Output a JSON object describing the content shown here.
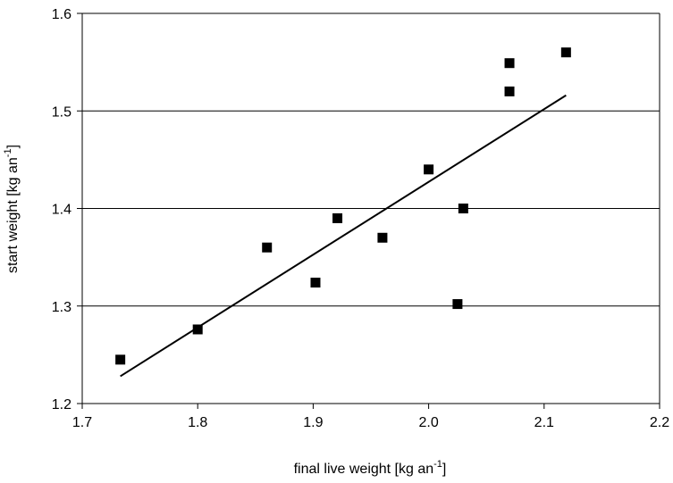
{
  "chart_data": {
    "type": "scatter",
    "xlabel": {
      "main": "final live weight [kg an",
      "sup": "-1",
      "tail": "]"
    },
    "ylabel": {
      "main": "start weight [kg an",
      "sup": "-1",
      "tail": "]"
    },
    "xlim": [
      1.7,
      2.2
    ],
    "ylim": [
      1.2,
      1.6
    ],
    "x_ticks": [
      "1.7",
      "1.8",
      "1.9",
      "2.0",
      "2.1",
      "2.2"
    ],
    "y_ticks": [
      "1.2",
      "1.3",
      "1.4",
      "1.5",
      "1.6"
    ],
    "grid": "horizontal",
    "series": [
      {
        "marker": "square",
        "color": "#000000",
        "points": [
          {
            "x": 1.733,
            "y": 1.245
          },
          {
            "x": 1.8,
            "y": 1.276
          },
          {
            "x": 1.86,
            "y": 1.36
          },
          {
            "x": 1.902,
            "y": 1.324
          },
          {
            "x": 1.921,
            "y": 1.39
          },
          {
            "x": 1.96,
            "y": 1.37
          },
          {
            "x": 2.0,
            "y": 1.44
          },
          {
            "x": 2.025,
            "y": 1.302
          },
          {
            "x": 2.03,
            "y": 1.4
          },
          {
            "x": 2.07,
            "y": 1.549
          },
          {
            "x": 2.07,
            "y": 1.52
          },
          {
            "x": 2.119,
            "y": 1.56
          }
        ]
      }
    ],
    "trendline": {
      "type": "linear",
      "from": {
        "x": 1.733,
        "y": 1.228
      },
      "to": {
        "x": 2.119,
        "y": 1.516
      }
    }
  }
}
